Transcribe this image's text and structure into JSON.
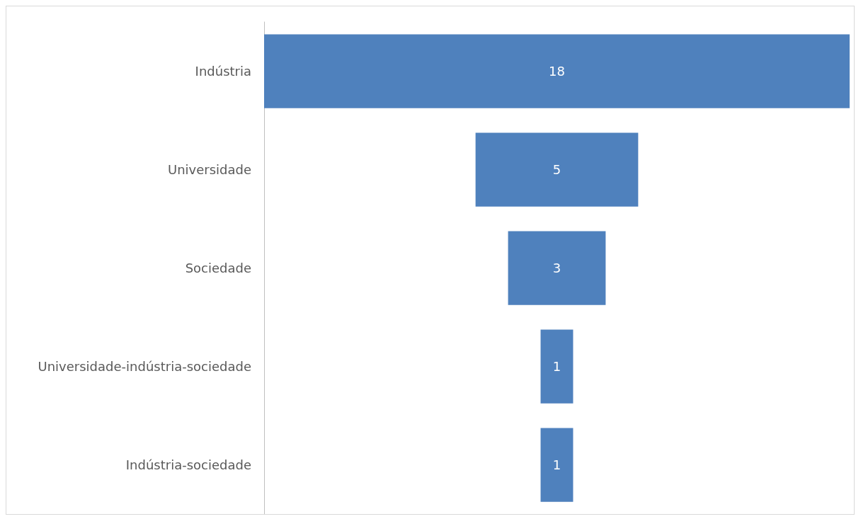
{
  "chart_data": {
    "type": "other",
    "categories": [
      "Indústria",
      "Universidade",
      "Sociedade",
      "Universidade-indústria-sociedade",
      "Indústria-sociedade"
    ],
    "values": [
      18,
      5,
      3,
      1,
      1
    ],
    "color": "#4f81bd",
    "data_labels": true
  }
}
